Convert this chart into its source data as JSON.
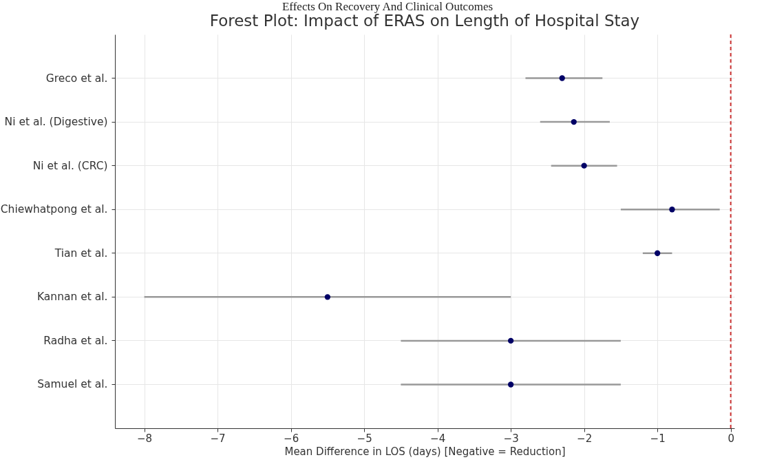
{
  "chart_data": {
    "type": "scatter",
    "title": "Forest Plot: Impact of ERAS on Length of Hospital Stay",
    "xlabel": "Mean Difference in LOS (days) [Negative = Reduction]",
    "annotations": [
      "Effects On Recovery And Clinical Outcomes"
    ],
    "orientation": "horizontal",
    "categories": [
      "Greco et al.",
      "Ni et al. (Digestive)",
      "Ni et al. (CRC)",
      "Chiewhatpong et al.",
      "Tian et al.",
      "Kannan et al.",
      "Radha et al.",
      "Samuel et al."
    ],
    "series": [
      {
        "color": "#000066",
        "values": [
          -2.3,
          -2.14,
          -2.0,
          -0.8,
          -1.0,
          -5.5,
          -3.0,
          -3.0
        ],
        "errors": [
          [
            -2.8,
            -1.75
          ],
          [
            -2.6,
            -1.65
          ],
          [
            -2.45,
            -1.55
          ],
          [
            -1.5,
            -0.15
          ],
          [
            -1.2,
            -0.8
          ],
          [
            -8.0,
            -3.0
          ],
          [
            -4.5,
            -1.5
          ],
          [
            -4.5,
            -1.5
          ]
        ]
      }
    ],
    "xlim": [
      -8.4,
      0.05
    ],
    "xticks": [
      {
        "value": -8,
        "label": "−8"
      },
      {
        "value": -7,
        "label": "−7"
      },
      {
        "value": -6,
        "label": "−6"
      },
      {
        "value": -5,
        "label": "−5"
      },
      {
        "value": -4,
        "label": "−4"
      },
      {
        "value": -3,
        "label": "−3"
      },
      {
        "value": -2,
        "label": "−2"
      },
      {
        "value": -1,
        "label": "−1"
      },
      0
    ],
    "ref_lines": [
      {
        "axis": "x",
        "value": 0,
        "color": "#cc3333",
        "line_style": "dashed"
      }
    ],
    "grid": true,
    "marker": "circle"
  }
}
